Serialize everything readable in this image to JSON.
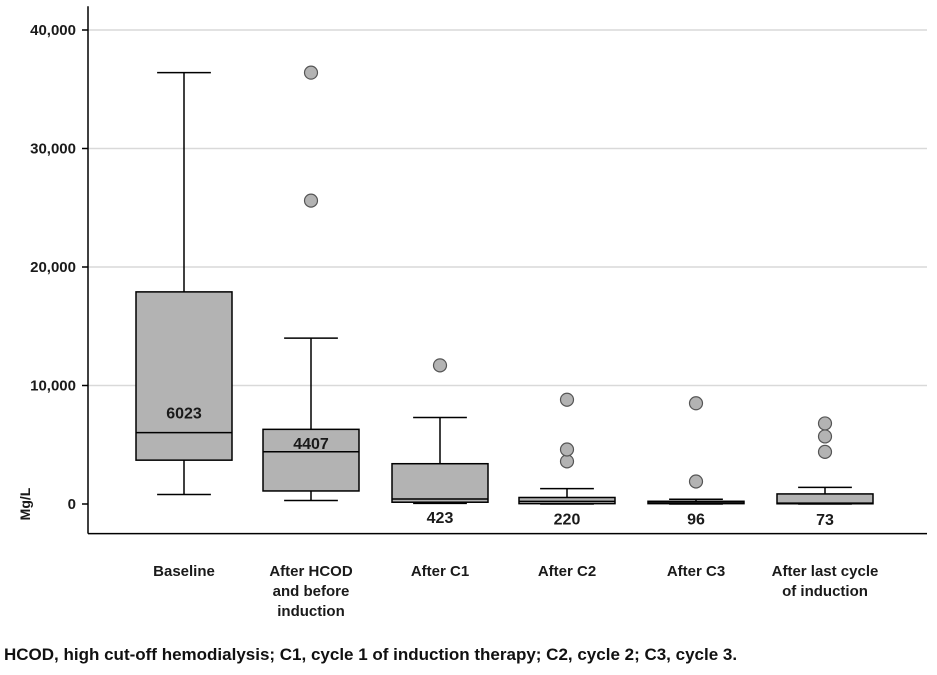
{
  "chart_data": {
    "type": "box",
    "ylabel": "Mg/L",
    "ylim": [
      -2500,
      42000
    ],
    "y_ticks": [
      0,
      10000,
      20000,
      30000,
      40000
    ],
    "y_tick_labels": [
      "0",
      "10,000",
      "20,000",
      "30,000",
      "40,000"
    ],
    "grid": true,
    "categories": [
      "Baseline",
      "After HCOD and before induction",
      "After C1",
      "After C2",
      "After C3",
      "After last cycle of induction"
    ],
    "category_label_lines": [
      [
        "Baseline"
      ],
      [
        "After HCOD",
        "and before",
        "induction"
      ],
      [
        "After C1"
      ],
      [
        "After C2"
      ],
      [
        "After C3"
      ],
      [
        "After last cycle",
        "of induction"
      ]
    ],
    "boxes": [
      {
        "whisker_low": 800,
        "q1": 3700,
        "median": 6023,
        "q3": 17900,
        "whisker_high": 36400,
        "outliers": [],
        "median_label": "6023"
      },
      {
        "whisker_low": 300,
        "q1": 1100,
        "median": 4407,
        "q3": 6300,
        "whisker_high": 14000,
        "outliers": [
          25600,
          36400
        ],
        "median_label": "4407"
      },
      {
        "whisker_low": 50,
        "q1": 150,
        "median": 423,
        "q3": 3400,
        "whisker_high": 7300,
        "outliers": [
          11700
        ],
        "median_label": "423"
      },
      {
        "whisker_low": 0,
        "q1": 30,
        "median": 220,
        "q3": 550,
        "whisker_high": 1300,
        "outliers": [
          3600,
          4600,
          8800
        ],
        "median_label": "220"
      },
      {
        "whisker_low": 0,
        "q1": 30,
        "median": 96,
        "q3": 230,
        "whisker_high": 400,
        "outliers": [
          1900,
          8500
        ],
        "median_label": "96"
      },
      {
        "whisker_low": 0,
        "q1": 20,
        "median": 73,
        "q3": 850,
        "whisker_high": 1400,
        "outliers": [
          4400,
          5700,
          6800
        ],
        "median_label": "73"
      }
    ],
    "colors": {
      "box_fill": "#b3b3b3",
      "stroke": "#000000",
      "grid": "#d9d9d9",
      "outlier": "#b3b3b3"
    }
  },
  "caption": "HCOD, high cut-off hemodialysis; C1, cycle 1 of induction therapy; C2, cycle 2; C3, cycle 3."
}
